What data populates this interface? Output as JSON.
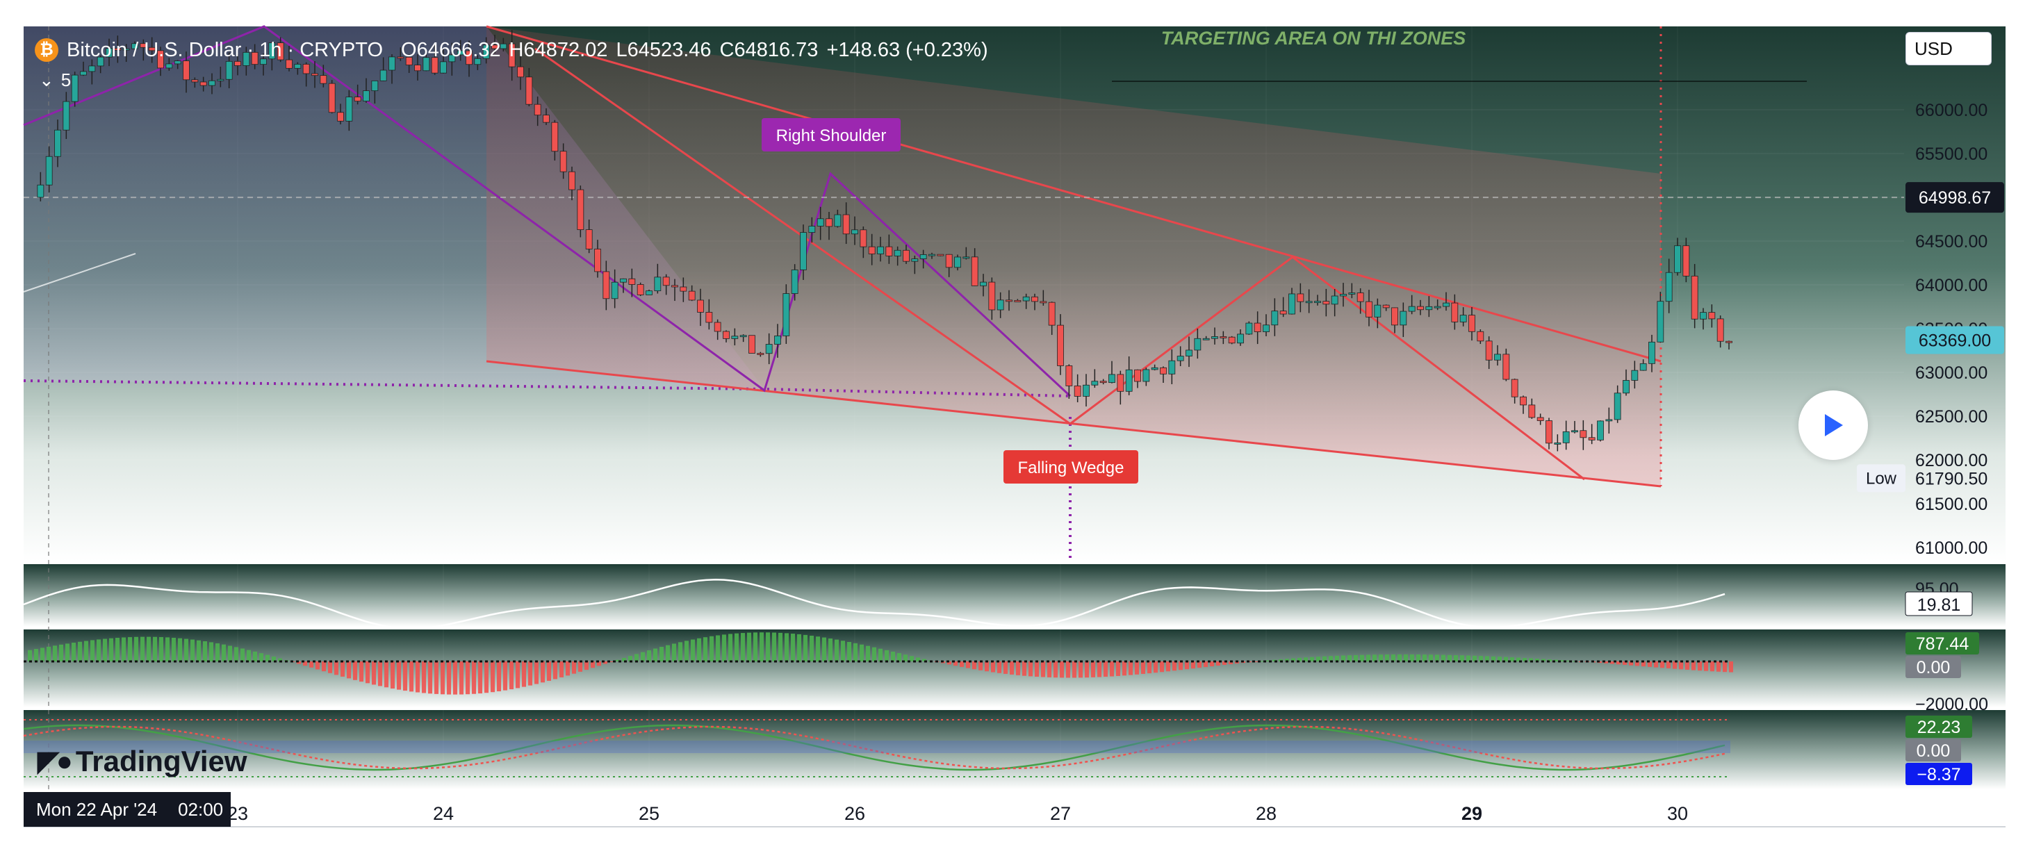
{
  "header": {
    "symbol_title": "Bitcoin / U.S. Dollar · 1h · CRYPTO",
    "open": "O64666.32",
    "high": "H64872.02",
    "low": "L64523.46",
    "close": "C64816.73",
    "change": "+148.63 (+0.23%)",
    "coin_glyph": "₿",
    "indicator_count": "5"
  },
  "currency": "USD",
  "annotation_top": "TARGETING AREA ON THI ZONES",
  "brand": "TradingView",
  "crosshair_date": "Mon 22 Apr '24",
  "crosshair_time": "02:00",
  "colors": {
    "up": "#26a69a",
    "down": "#ef5350",
    "wedge": "#e8474c",
    "pattern_purple": "#8e24aa",
    "bg_top": "#1d3b33",
    "label_purple": "#9c27b0",
    "label_red": "#e53935"
  },
  "chart_data": [
    {
      "type": "candlestick",
      "title": "Bitcoin / U.S. Dollar",
      "interval": "1h",
      "x_ticks": [
        "23",
        "24",
        "25",
        "26",
        "27",
        "28",
        "29",
        "30"
      ],
      "y_ticks": [
        "61000.00",
        "61500.00",
        "62000.00",
        "62500.00",
        "63000.00",
        "63500.00",
        "64000.00",
        "64500.00",
        "65000.00",
        "65500.00",
        "66000.00"
      ],
      "ylim": [
        60900,
        67000
      ],
      "price_labels": [
        {
          "value": "64998.67",
          "style": "crosshair"
        },
        {
          "value": "63369.00",
          "style": "last"
        },
        {
          "value": "61790.50",
          "style": "low",
          "label": "Low"
        }
      ],
      "path_anchors": [
        {
          "day": 22.0,
          "price": 65000
        },
        {
          "day": 22.2,
          "price": 66300
        },
        {
          "day": 22.5,
          "price": 66800
        },
        {
          "day": 22.8,
          "price": 66300
        },
        {
          "day": 23.2,
          "price": 66700
        },
        {
          "day": 23.5,
          "price": 66000
        },
        {
          "day": 23.8,
          "price": 66600
        },
        {
          "day": 24.0,
          "price": 66500
        },
        {
          "day": 24.3,
          "price": 66700
        },
        {
          "day": 24.55,
          "price": 65500
        },
        {
          "day": 24.8,
          "price": 63900
        },
        {
          "day": 25.1,
          "price": 64100
        },
        {
          "day": 25.45,
          "price": 63300
        },
        {
          "day": 25.6,
          "price": 63200
        },
        {
          "day": 25.75,
          "price": 64600
        },
        {
          "day": 25.9,
          "price": 64700
        },
        {
          "day": 26.2,
          "price": 64300
        },
        {
          "day": 26.55,
          "price": 64200
        },
        {
          "day": 26.7,
          "price": 63700
        },
        {
          "day": 26.9,
          "price": 63900
        },
        {
          "day": 27.05,
          "price": 62700
        },
        {
          "day": 27.3,
          "price": 62900
        },
        {
          "day": 27.6,
          "price": 63200
        },
        {
          "day": 27.9,
          "price": 63500
        },
        {
          "day": 28.15,
          "price": 63900
        },
        {
          "day": 28.4,
          "price": 63800
        },
        {
          "day": 28.65,
          "price": 63600
        },
        {
          "day": 28.85,
          "price": 63800
        },
        {
          "day": 29.1,
          "price": 63200
        },
        {
          "day": 29.35,
          "price": 62300
        },
        {
          "day": 29.6,
          "price": 62200
        },
        {
          "day": 29.75,
          "price": 62900
        },
        {
          "day": 29.85,
          "price": 63000
        },
        {
          "day": 29.92,
          "price": 63800
        },
        {
          "day": 30.0,
          "price": 64400
        },
        {
          "day": 30.1,
          "price": 63600
        },
        {
          "day": 30.25,
          "price": 63370
        }
      ],
      "annotations": [
        {
          "text": "Right Shoulder",
          "kind": "label"
        },
        {
          "text": "Falling Wedge",
          "kind": "label"
        }
      ]
    },
    {
      "type": "line",
      "panel": "oscillator",
      "value_label": "19.81",
      "partial_tick": "95.00"
    },
    {
      "type": "bar",
      "panel": "histogram",
      "value_labels": [
        "787.44",
        "0.00"
      ],
      "partial_tick": "−2000.00"
    },
    {
      "type": "line",
      "panel": "momentum",
      "value_labels": [
        "22.23",
        "0.00",
        "−8.37"
      ]
    }
  ]
}
